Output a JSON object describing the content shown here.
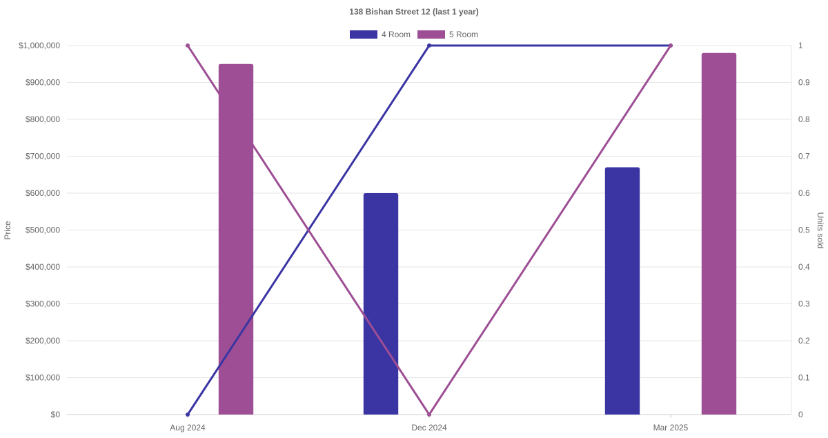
{
  "chart_data": {
    "type": "bar",
    "title": "138 Bishan Street 12 (last 1 year)",
    "categories": [
      "Aug 2024",
      "Dec 2024",
      "Mar 2025"
    ],
    "y_left": {
      "label": "Price",
      "range": [
        0,
        1000000
      ],
      "ticks": [
        "$0",
        "$100,000",
        "$200,000",
        "$300,000",
        "$400,000",
        "$500,000",
        "$600,000",
        "$700,000",
        "$800,000",
        "$900,000",
        "$1,000,000"
      ],
      "tick_values": [
        0,
        100000,
        200000,
        300000,
        400000,
        500000,
        600000,
        700000,
        800000,
        900000,
        1000000
      ]
    },
    "y_right": {
      "label": "Units sold",
      "range": [
        0,
        1
      ],
      "ticks": [
        "0",
        "0.1",
        "0.2",
        "0.3",
        "0.4",
        "0.5",
        "0.6",
        "0.7",
        "0.8",
        "0.9",
        "1"
      ],
      "tick_values": [
        0,
        0.1,
        0.2,
        0.3,
        0.4,
        0.5,
        0.6,
        0.7,
        0.8,
        0.9,
        1
      ]
    },
    "bar_series": [
      {
        "name": "4 Room",
        "color": "#3a35a3",
        "values": [
          null,
          600000,
          670000
        ]
      },
      {
        "name": "5 Room",
        "color": "#9d4e94",
        "values": [
          950000,
          null,
          980000
        ]
      }
    ],
    "line_series": [
      {
        "name": "4 Room",
        "color": "#3a35a3",
        "values": [
          0,
          1,
          1
        ]
      },
      {
        "name": "5 Room",
        "color": "#9d4e94",
        "values": [
          1,
          0,
          1
        ]
      }
    ],
    "legend": {
      "position": "top-center",
      "items": [
        {
          "name": "4 Room",
          "color": "#3a35a3"
        },
        {
          "name": "5 Room",
          "color": "#9d4e94"
        }
      ]
    },
    "grid": true
  }
}
